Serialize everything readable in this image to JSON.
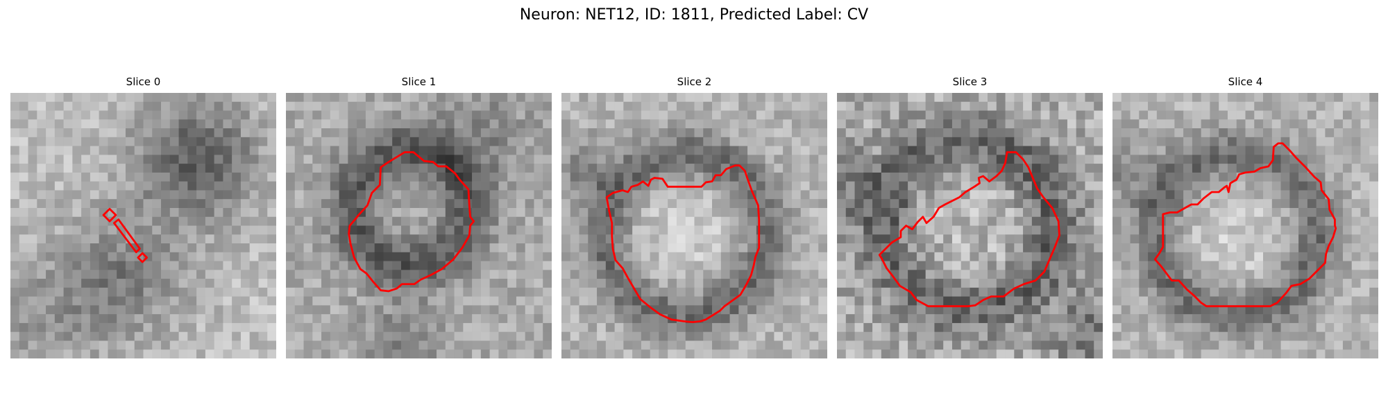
{
  "title": "Neuron: NET12, ID: 1811, Predicted Label: CV",
  "contour_color": "#ff0000",
  "panels": [
    {
      "label": "Slice 0",
      "seed": 11,
      "texture": "corner-dark-top-right"
    },
    {
      "label": "Slice 1",
      "seed": 23,
      "texture": "ring"
    },
    {
      "label": "Slice 2",
      "seed": 37,
      "texture": "ring-light"
    },
    {
      "label": "Slice 3",
      "seed": 51,
      "texture": "noisy"
    },
    {
      "label": "Slice 4",
      "seed": 67,
      "texture": "ring-light"
    }
  ]
}
